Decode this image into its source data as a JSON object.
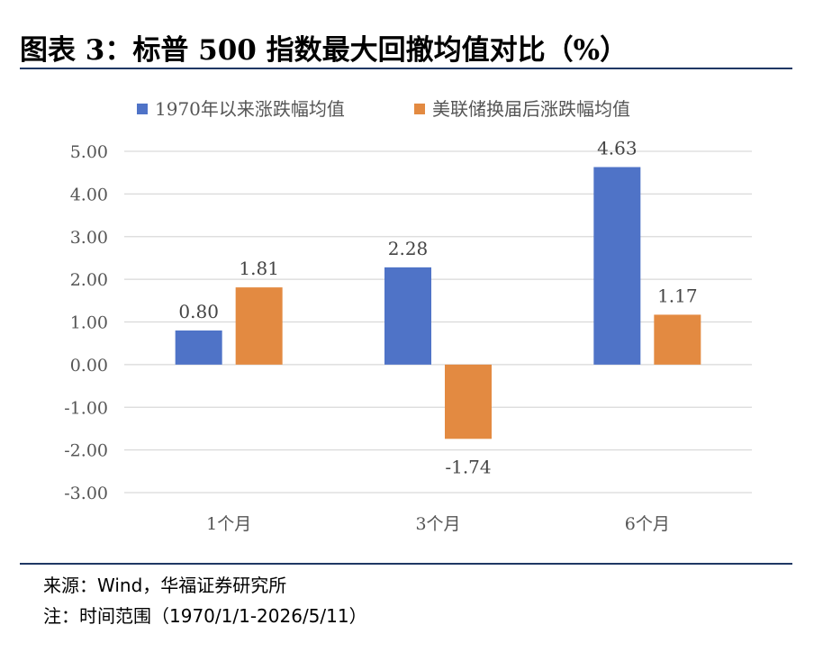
{
  "title": "图表 3：标普 500 指数最大回撤均值对比（%）",
  "footer": {
    "source": "来源：Wind，华福证券研究所",
    "note": "注：时间范围（1970/1/1-2026/5/11）"
  },
  "chart_data": {
    "type": "bar",
    "categories": [
      "1个月",
      "3个月",
      "6个月"
    ],
    "series": [
      {
        "name": "1970年以来涨跌幅均值",
        "values": [
          0.8,
          2.28,
          4.63
        ],
        "color": "#4f73c7"
      },
      {
        "name": "美联储换届后涨跌幅均值",
        "values": [
          1.81,
          -1.74,
          1.17
        ],
        "color": "#e38a41"
      }
    ],
    "ylim": [
      -3,
      5
    ],
    "yticks": [
      5,
      4,
      3,
      2,
      1,
      0,
      -1,
      -2,
      -3
    ],
    "ytick_labels": [
      "5.00",
      "4.00",
      "3.00",
      "2.00",
      "1.00",
      "0.00",
      "-1.00",
      "-2.00",
      "-3.00"
    ],
    "data_labels": [
      [
        "0.80",
        "2.28",
        "4.63"
      ],
      [
        "1.81",
        "-1.74",
        "1.17"
      ]
    ],
    "grid": true,
    "legend_position": "top-left",
    "gridline_color": "#d9d9d9"
  }
}
